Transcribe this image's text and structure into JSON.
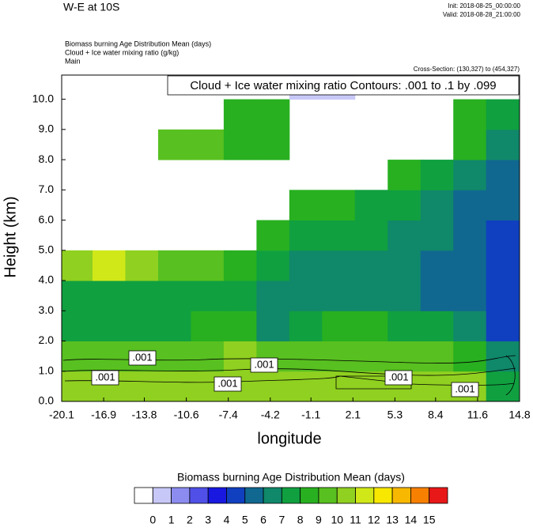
{
  "chart_data": {
    "type": "heatmap",
    "title": "W-E at 10S",
    "init": "Init: 2018-08-25_00:00:00",
    "valid": "Valid: 2018-08-28_21:00:00",
    "subtitles": [
      "Biomass burning Age Distribution Mean   (days)",
      "Cloud + Ice water mixing ratio   (g/kg)",
      "Main"
    ],
    "cross_section": "Cross-Section: (130,327) to (454,327)",
    "contour_note": "Cloud + Ice water mixing ratio Contours: .001 to .1 by .099",
    "contour_labels": [
      ".001",
      ".001",
      ".001",
      ".001",
      ".001",
      ".001"
    ],
    "x_label": "longitude",
    "y_label": "Height (km)",
    "xlim": [
      -20.1,
      14.8
    ],
    "xticks": [
      -20.1,
      -16.9,
      -13.8,
      -10.6,
      -7.4,
      -4.2,
      -1.1,
      2.1,
      5.3,
      8.4,
      11.6,
      14.8
    ],
    "ylim": [
      0,
      10.8
    ],
    "yticks": [
      {
        "value": 0,
        "label": "0.0"
      },
      {
        "value": 1,
        "label": "1.0"
      },
      {
        "value": 2,
        "label": "2.0"
      },
      {
        "value": 3,
        "label": "3.0"
      },
      {
        "value": 4,
        "label": "4.0"
      },
      {
        "value": 5,
        "label": "5.0"
      },
      {
        "value": 6,
        "label": "6.0"
      },
      {
        "value": 7,
        "label": "7.0"
      },
      {
        "value": 8,
        "label": "8.0"
      },
      {
        "value": 9,
        "label": "9.0"
      },
      {
        "value": 10,
        "label": "10.0"
      }
    ],
    "x": [
      -19,
      -16.5,
      -14,
      -11.5,
      -9,
      -6.5,
      -4,
      -1.5,
      1,
      3.5,
      6,
      8.5,
      11,
      13.5
    ],
    "y": [
      0.5,
      1.5,
      2.5,
      3.5,
      4.5,
      5.5,
      6.5,
      7.5,
      8.5,
      9.5,
      10.5
    ],
    "z": [
      [
        10.5,
        10.5,
        10.5,
        10.5,
        10.5,
        10.5,
        10.5,
        10.5,
        10.5,
        10.5,
        10.5,
        10.5,
        10.5,
        7
      ],
      [
        9.5,
        9.5,
        9.5,
        9.5,
        9.5,
        10,
        9,
        9.5,
        9.5,
        9.5,
        9,
        9,
        8.5,
        6
      ],
      [
        7,
        7.5,
        7.5,
        7.5,
        8,
        8,
        6.5,
        7,
        8,
        8,
        7.5,
        7.5,
        6.5,
        4.5
      ],
      [
        7.5,
        7,
        7,
        7,
        7.5,
        7,
        6,
        6,
        6.5,
        6,
        6,
        5.5,
        5,
        4.5
      ],
      [
        10.5,
        11,
        10,
        9.5,
        9.5,
        8,
        7,
        6.5,
        6.5,
        6,
        6,
        5.5,
        5,
        4.5
      ],
      [
        null,
        null,
        null,
        null,
        null,
        null,
        8,
        7.5,
        7,
        7,
        6.5,
        6,
        5.5,
        4.5
      ],
      [
        null,
        null,
        null,
        null,
        null,
        null,
        null,
        8.5,
        8,
        7.5,
        7,
        6.5,
        5.5,
        5
      ],
      [
        null,
        null,
        null,
        null,
        null,
        null,
        null,
        null,
        null,
        null,
        8,
        7.5,
        6.5,
        5.5
      ],
      [
        null,
        null,
        null,
        9,
        9,
        8.5,
        8.5,
        null,
        null,
        null,
        null,
        null,
        8,
        6.5
      ],
      [
        null,
        null,
        null,
        null,
        null,
        8.5,
        8.5,
        null,
        null,
        null,
        null,
        null,
        8.5,
        7.5
      ],
      [
        null,
        null,
        null,
        null,
        null,
        null,
        null,
        0.5,
        0.5,
        null,
        null,
        null,
        null,
        null
      ]
    ],
    "colorbar": {
      "title": "Biomass burning Age Distribution Mean  (days)",
      "colors": [
        "#ffffff",
        "#c8c8f8",
        "#8c8cf0",
        "#5050e8",
        "#1818e0",
        "#1040c0",
        "#106890",
        "#10886a",
        "#10a040",
        "#28b020",
        "#58c020",
        "#90d020",
        "#d0e818",
        "#f8e800",
        "#f8b800",
        "#f88000",
        "#e81818"
      ],
      "levels": [
        0,
        1,
        2,
        3,
        4,
        5,
        6,
        7,
        8,
        9,
        10,
        11,
        12,
        13,
        14,
        15
      ]
    }
  }
}
